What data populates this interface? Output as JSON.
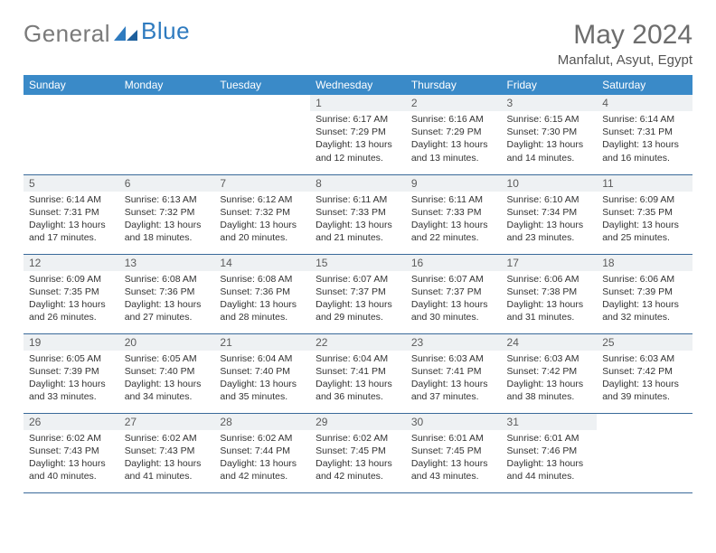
{
  "brand": {
    "name_gray": "General",
    "name_blue": "Blue"
  },
  "title": "May 2024",
  "location": "Manfalut, Asyut, Egypt",
  "header_bg": "#3a8ac8",
  "daynum_bg": "#eef1f3",
  "rule_color": "#3a6a9a",
  "weekdays": [
    "Sunday",
    "Monday",
    "Tuesday",
    "Wednesday",
    "Thursday",
    "Friday",
    "Saturday"
  ],
  "weeks": [
    [
      null,
      null,
      null,
      {
        "n": "1",
        "sunrise": "6:17 AM",
        "sunset": "7:29 PM",
        "daylight": "13 hours and 12 minutes."
      },
      {
        "n": "2",
        "sunrise": "6:16 AM",
        "sunset": "7:29 PM",
        "daylight": "13 hours and 13 minutes."
      },
      {
        "n": "3",
        "sunrise": "6:15 AM",
        "sunset": "7:30 PM",
        "daylight": "13 hours and 14 minutes."
      },
      {
        "n": "4",
        "sunrise": "6:14 AM",
        "sunset": "7:31 PM",
        "daylight": "13 hours and 16 minutes."
      }
    ],
    [
      {
        "n": "5",
        "sunrise": "6:14 AM",
        "sunset": "7:31 PM",
        "daylight": "13 hours and 17 minutes."
      },
      {
        "n": "6",
        "sunrise": "6:13 AM",
        "sunset": "7:32 PM",
        "daylight": "13 hours and 18 minutes."
      },
      {
        "n": "7",
        "sunrise": "6:12 AM",
        "sunset": "7:32 PM",
        "daylight": "13 hours and 20 minutes."
      },
      {
        "n": "8",
        "sunrise": "6:11 AM",
        "sunset": "7:33 PM",
        "daylight": "13 hours and 21 minutes."
      },
      {
        "n": "9",
        "sunrise": "6:11 AM",
        "sunset": "7:33 PM",
        "daylight": "13 hours and 22 minutes."
      },
      {
        "n": "10",
        "sunrise": "6:10 AM",
        "sunset": "7:34 PM",
        "daylight": "13 hours and 23 minutes."
      },
      {
        "n": "11",
        "sunrise": "6:09 AM",
        "sunset": "7:35 PM",
        "daylight": "13 hours and 25 minutes."
      }
    ],
    [
      {
        "n": "12",
        "sunrise": "6:09 AM",
        "sunset": "7:35 PM",
        "daylight": "13 hours and 26 minutes."
      },
      {
        "n": "13",
        "sunrise": "6:08 AM",
        "sunset": "7:36 PM",
        "daylight": "13 hours and 27 minutes."
      },
      {
        "n": "14",
        "sunrise": "6:08 AM",
        "sunset": "7:36 PM",
        "daylight": "13 hours and 28 minutes."
      },
      {
        "n": "15",
        "sunrise": "6:07 AM",
        "sunset": "7:37 PM",
        "daylight": "13 hours and 29 minutes."
      },
      {
        "n": "16",
        "sunrise": "6:07 AM",
        "sunset": "7:37 PM",
        "daylight": "13 hours and 30 minutes."
      },
      {
        "n": "17",
        "sunrise": "6:06 AM",
        "sunset": "7:38 PM",
        "daylight": "13 hours and 31 minutes."
      },
      {
        "n": "18",
        "sunrise": "6:06 AM",
        "sunset": "7:39 PM",
        "daylight": "13 hours and 32 minutes."
      }
    ],
    [
      {
        "n": "19",
        "sunrise": "6:05 AM",
        "sunset": "7:39 PM",
        "daylight": "13 hours and 33 minutes."
      },
      {
        "n": "20",
        "sunrise": "6:05 AM",
        "sunset": "7:40 PM",
        "daylight": "13 hours and 34 minutes."
      },
      {
        "n": "21",
        "sunrise": "6:04 AM",
        "sunset": "7:40 PM",
        "daylight": "13 hours and 35 minutes."
      },
      {
        "n": "22",
        "sunrise": "6:04 AM",
        "sunset": "7:41 PM",
        "daylight": "13 hours and 36 minutes."
      },
      {
        "n": "23",
        "sunrise": "6:03 AM",
        "sunset": "7:41 PM",
        "daylight": "13 hours and 37 minutes."
      },
      {
        "n": "24",
        "sunrise": "6:03 AM",
        "sunset": "7:42 PM",
        "daylight": "13 hours and 38 minutes."
      },
      {
        "n": "25",
        "sunrise": "6:03 AM",
        "sunset": "7:42 PM",
        "daylight": "13 hours and 39 minutes."
      }
    ],
    [
      {
        "n": "26",
        "sunrise": "6:02 AM",
        "sunset": "7:43 PM",
        "daylight": "13 hours and 40 minutes."
      },
      {
        "n": "27",
        "sunrise": "6:02 AM",
        "sunset": "7:43 PM",
        "daylight": "13 hours and 41 minutes."
      },
      {
        "n": "28",
        "sunrise": "6:02 AM",
        "sunset": "7:44 PM",
        "daylight": "13 hours and 42 minutes."
      },
      {
        "n": "29",
        "sunrise": "6:02 AM",
        "sunset": "7:45 PM",
        "daylight": "13 hours and 42 minutes."
      },
      {
        "n": "30",
        "sunrise": "6:01 AM",
        "sunset": "7:45 PM",
        "daylight": "13 hours and 43 minutes."
      },
      {
        "n": "31",
        "sunrise": "6:01 AM",
        "sunset": "7:46 PM",
        "daylight": "13 hours and 44 minutes."
      },
      null
    ]
  ],
  "labels": {
    "sunrise": "Sunrise:",
    "sunset": "Sunset:",
    "daylight": "Daylight:"
  }
}
